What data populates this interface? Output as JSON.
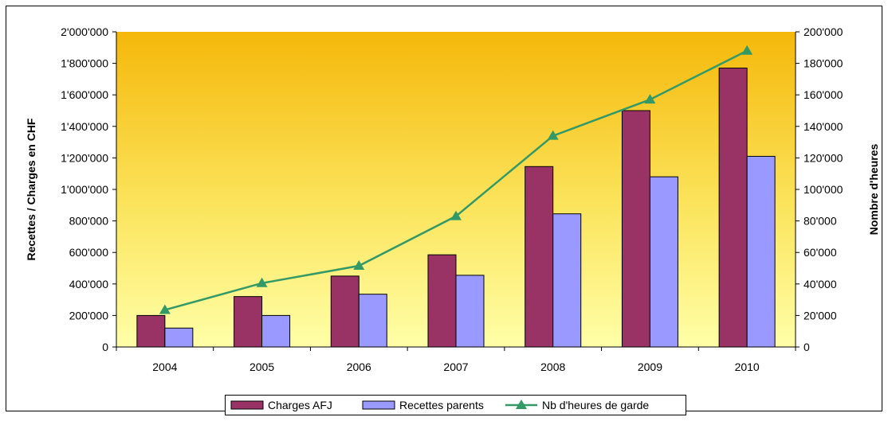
{
  "chart_data": {
    "type": "bar",
    "categories": [
      "2004",
      "2005",
      "2006",
      "2007",
      "2008",
      "2009",
      "2010"
    ],
    "series": [
      {
        "name": "Charges AFJ",
        "kind": "bar",
        "axis": "left",
        "color": "#993366",
        "values": [
          200000,
          320000,
          450000,
          585000,
          1145000,
          1500000,
          1770000
        ]
      },
      {
        "name": "Recettes parents",
        "kind": "bar",
        "axis": "left",
        "color": "#9999ff",
        "values": [
          120000,
          200000,
          335000,
          455000,
          845000,
          1080000,
          1210000
        ]
      },
      {
        "name": "Nb d'heures de garde",
        "kind": "line",
        "axis": "right",
        "color": "#339966",
        "values": [
          23500,
          40500,
          51500,
          83000,
          134000,
          157000,
          188000
        ]
      }
    ],
    "ylabel": "Recettes / Charges en CHF",
    "y2label": "Nombre d'heures",
    "ylim": [
      0,
      2000000
    ],
    "y2lim": [
      0,
      200000
    ],
    "yticks": [
      "0",
      "200'000",
      "400'000",
      "600'000",
      "800'000",
      "1'000'000",
      "1'200'000",
      "1'400'000",
      "1'600'000",
      "1'800'000",
      "2'000'000"
    ],
    "y2ticks": [
      "0",
      "20'000",
      "40'000",
      "60'000",
      "80'000",
      "100'000",
      "120'000",
      "140'000",
      "160'000",
      "180'000",
      "200'000"
    ],
    "grid": false,
    "legend_position": "bottom",
    "plot_background": "yellow-gradient"
  }
}
